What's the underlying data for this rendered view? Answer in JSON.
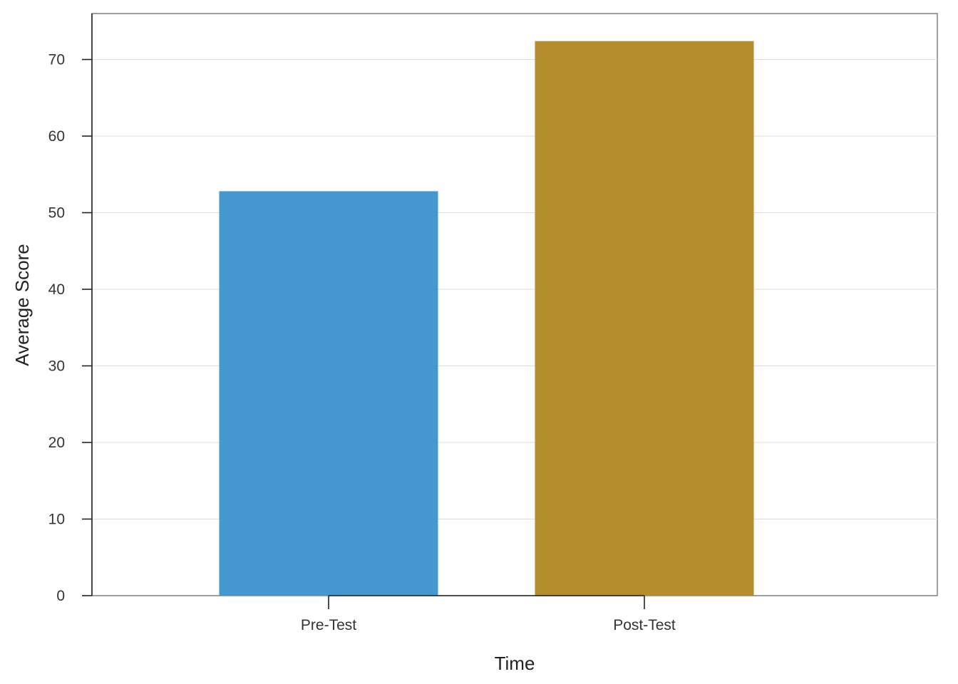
{
  "chart_data": {
    "type": "bar",
    "title": "",
    "xlabel": "Time",
    "ylabel": "Average Score",
    "categories": [
      "Pre-Test",
      "Post-Test"
    ],
    "values": [
      52.8,
      72.4
    ],
    "bar_colors": [
      "#4398d0",
      "#b38d2b"
    ],
    "ylim": [
      0,
      76
    ],
    "yticks": [
      0,
      10,
      20,
      30,
      40,
      50,
      60,
      70
    ],
    "ytick_labels": [
      "0",
      "10",
      "20",
      "30",
      "40",
      "50",
      "60",
      "70"
    ],
    "grid": true,
    "grid_axis": "y",
    "legend": "none"
  }
}
